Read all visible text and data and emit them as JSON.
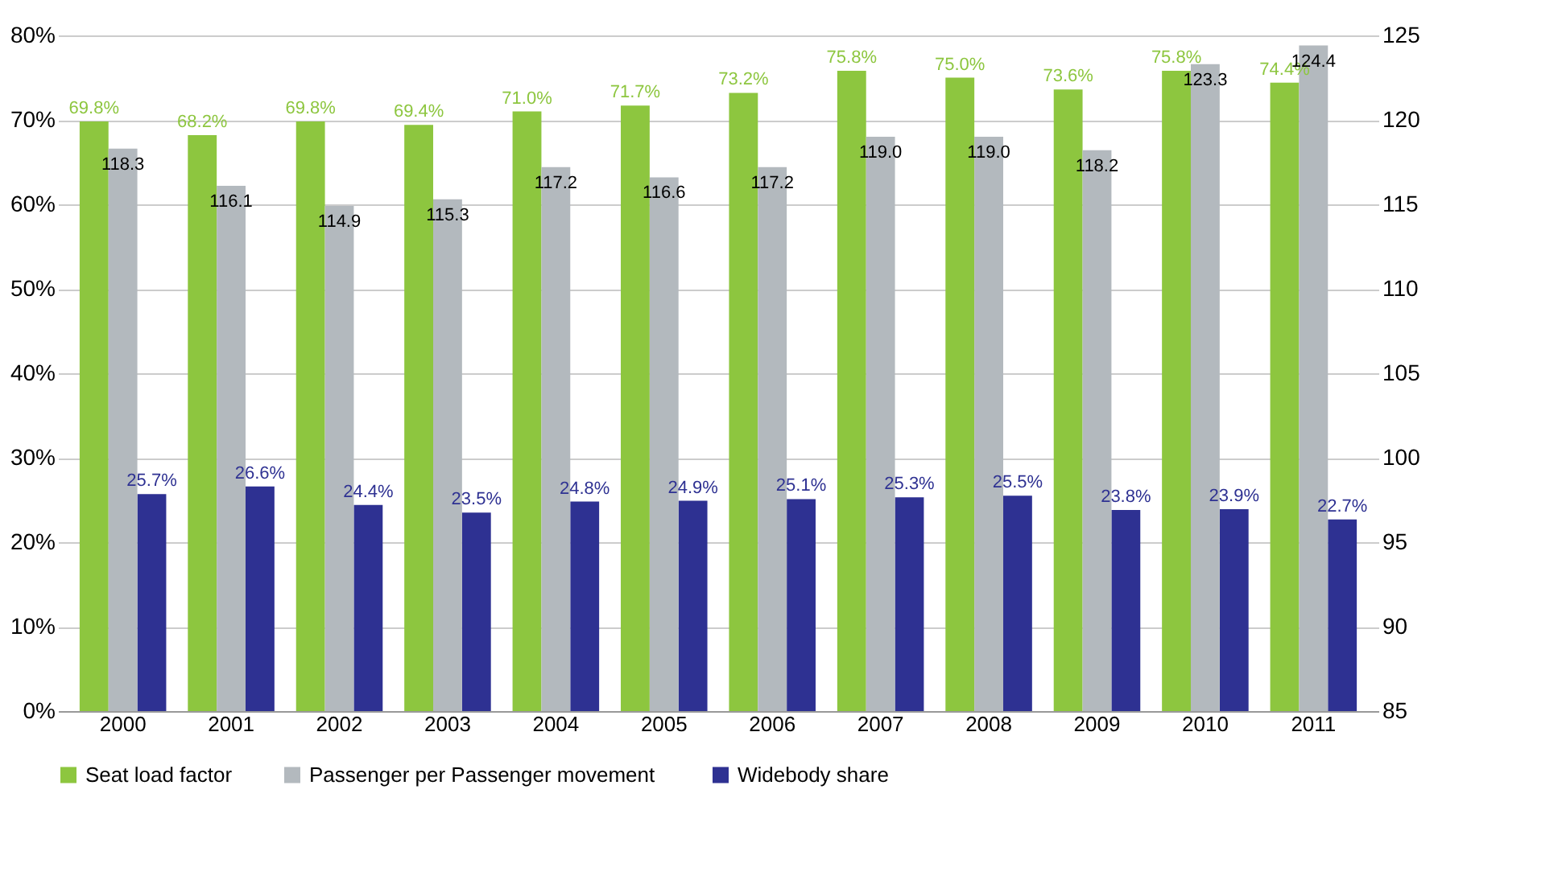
{
  "chart_data": {
    "type": "bar",
    "categories": [
      "2000",
      "2001",
      "2002",
      "2003",
      "2004",
      "2005",
      "2006",
      "2007",
      "2008",
      "2009",
      "2010",
      "2011"
    ],
    "series": [
      {
        "name": "Seat load factor",
        "color": "#8dc63f",
        "values": [
          69.8,
          68.2,
          69.8,
          69.4,
          71.0,
          71.7,
          73.2,
          75.8,
          75.0,
          73.6,
          75.8,
          74.4
        ],
        "value_labels": [
          "69.8%",
          "68.2%",
          "69.8%",
          "69.4%",
          "71.0%",
          "71.7%",
          "73.2%",
          "75.8%",
          "75.0%",
          "73.6%",
          "75.8%",
          "74.4%"
        ]
      },
      {
        "name": "Passenger  per Passenger movement",
        "color": "#b3b9be",
        "axis": "y2",
        "values": [
          118.3,
          116.1,
          114.9,
          115.3,
          117.2,
          116.6,
          117.2,
          119.0,
          119.0,
          118.2,
          123.3,
          124.4
        ],
        "value_labels": [
          "118.3",
          "116.1",
          "114.9",
          "115.3",
          "117.2",
          "116.6",
          "117.2",
          "119.0",
          "119.0",
          "118.2",
          "123.3",
          "124.4"
        ]
      },
      {
        "name": "Widebody share",
        "color": "#2e3192",
        "values": [
          25.7,
          26.6,
          24.4,
          23.5,
          24.8,
          24.9,
          25.1,
          25.3,
          25.5,
          23.8,
          23.9,
          22.7
        ],
        "value_labels": [
          "25.7%",
          "26.6%",
          "24.4%",
          "23.5%",
          "24.8%",
          "24.9%",
          "25.1%",
          "25.3%",
          "25.5%",
          "23.8%",
          "23.9%",
          "22.7%"
        ]
      }
    ],
    "ylim": [
      0,
      80
    ],
    "yticks": [
      {
        "value": 0,
        "label": "0%"
      },
      {
        "value": 10,
        "label": "10%"
      },
      {
        "value": 20,
        "label": "20%"
      },
      {
        "value": 30,
        "label": "30%"
      },
      {
        "value": 40,
        "label": "40%"
      },
      {
        "value": 50,
        "label": "50%"
      },
      {
        "value": 60,
        "label": "60%"
      },
      {
        "value": 70,
        "label": "70%"
      },
      {
        "value": 80,
        "label": "80%"
      }
    ],
    "y2lim": [
      85,
      125
    ],
    "y2ticks": [
      85,
      90,
      95,
      100,
      105,
      110,
      115,
      120,
      125
    ],
    "grid": "y",
    "legend": "bottom"
  }
}
